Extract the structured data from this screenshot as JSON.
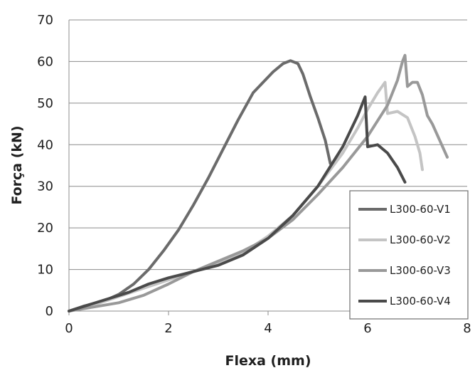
{
  "chart_data": {
    "type": "line",
    "xlabel": "Flexa (mm)",
    "ylabel": "Força (kN)",
    "xlim": [
      0,
      8
    ],
    "ylim": [
      0,
      70
    ],
    "xticks": [
      0,
      2,
      4,
      6,
      8
    ],
    "yticks": [
      0,
      10,
      20,
      30,
      40,
      50,
      60,
      70
    ],
    "grid": "horizontal",
    "legend_position": "bottom-right",
    "series": [
      {
        "name": "L300-60-V1",
        "color": "#6b6b6b",
        "x": [
          0,
          0.3,
          0.7,
          1.0,
          1.3,
          1.6,
          1.9,
          2.2,
          2.5,
          2.8,
          3.1,
          3.4,
          3.7,
          3.9,
          4.1,
          4.3,
          4.45,
          4.6,
          4.7,
          4.85,
          5.0,
          5.15,
          5.25
        ],
        "y": [
          0,
          1.2,
          2.4,
          4.0,
          6.5,
          10.0,
          14.5,
          19.5,
          25.5,
          32.0,
          39.0,
          46.0,
          52.5,
          55.0,
          57.5,
          59.5,
          60.2,
          59.5,
          57.0,
          51.5,
          46.5,
          41.0,
          35.5
        ]
      },
      {
        "name": "L300-60-V2",
        "color": "#c4c4c4",
        "x": [
          0,
          0.5,
          1.0,
          1.5,
          2.0,
          2.5,
          3.0,
          3.5,
          4.0,
          4.5,
          5.0,
          5.5,
          5.8,
          6.0,
          6.2,
          6.35,
          6.4,
          6.6,
          6.8,
          6.95,
          7.05,
          7.1
        ],
        "y": [
          0,
          1.5,
          3.5,
          5.5,
          7.5,
          9.5,
          11.5,
          14.0,
          18.0,
          23.0,
          30.0,
          38.0,
          44.0,
          48.5,
          52.5,
          55.0,
          47.5,
          48.0,
          46.5,
          42.0,
          38.0,
          34.0
        ]
      },
      {
        "name": "L300-60-V3",
        "color": "#999999",
        "x": [
          0,
          0.5,
          1.0,
          1.5,
          2.0,
          2.5,
          3.0,
          3.5,
          4.0,
          4.5,
          5.0,
          5.5,
          6.0,
          6.4,
          6.6,
          6.7,
          6.75,
          6.8,
          6.9,
          7.0,
          7.1,
          7.2,
          7.3,
          7.45,
          7.6
        ],
        "y": [
          0,
          1.0,
          2.0,
          3.8,
          6.5,
          9.5,
          12.0,
          14.5,
          17.5,
          22.0,
          28.0,
          34.5,
          42.0,
          49.5,
          55.5,
          60.0,
          61.5,
          54.0,
          55.0,
          55.0,
          52.0,
          47.0,
          45.0,
          41.0,
          37.0
        ]
      },
      {
        "name": "L300-60-V4",
        "color": "#4a4a4a",
        "x": [
          0,
          0.4,
          0.8,
          1.2,
          1.6,
          2.0,
          2.5,
          3.0,
          3.5,
          4.0,
          4.5,
          5.0,
          5.5,
          5.8,
          5.95,
          6.0,
          6.2,
          6.4,
          6.6,
          6.75
        ],
        "y": [
          0,
          1.5,
          3.0,
          4.5,
          6.5,
          8.0,
          9.5,
          11.0,
          13.5,
          17.5,
          23.0,
          30.0,
          39.5,
          47.0,
          51.5,
          39.5,
          40.0,
          38.0,
          34.5,
          31.0
        ]
      }
    ]
  }
}
